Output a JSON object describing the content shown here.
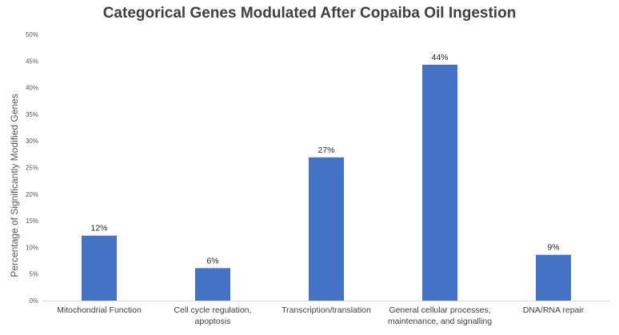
{
  "chart_data": {
    "type": "bar",
    "title": "Categorical Genes Modulated After Copaiba Oil Ingestion",
    "xlabel": "",
    "ylabel": "Percentage of Significantly Modified Genes",
    "ylim": [
      0,
      50
    ],
    "yticks": [
      0,
      5,
      10,
      15,
      20,
      25,
      30,
      35,
      40,
      45,
      50
    ],
    "ytick_labels": [
      "0%",
      "5%",
      "10%",
      "15%",
      "20%",
      "25%",
      "30%",
      "35%",
      "40%",
      "45%",
      "50%"
    ],
    "categories": [
      [
        "Mitochondrial Function"
      ],
      [
        "Cell cycle regulation,",
        "apoptosis"
      ],
      [
        "Transcription/translation"
      ],
      [
        "General cellular processes,",
        "maintenance, and signalling"
      ],
      [
        "DNA/RNA repair"
      ]
    ],
    "values": [
      12.2,
      6.1,
      26.9,
      44.3,
      8.6
    ],
    "data_labels": [
      "12%",
      "6%",
      "27%",
      "44%",
      "9%"
    ],
    "bar_color": "#4472c4",
    "grid": false,
    "legend": "none"
  }
}
